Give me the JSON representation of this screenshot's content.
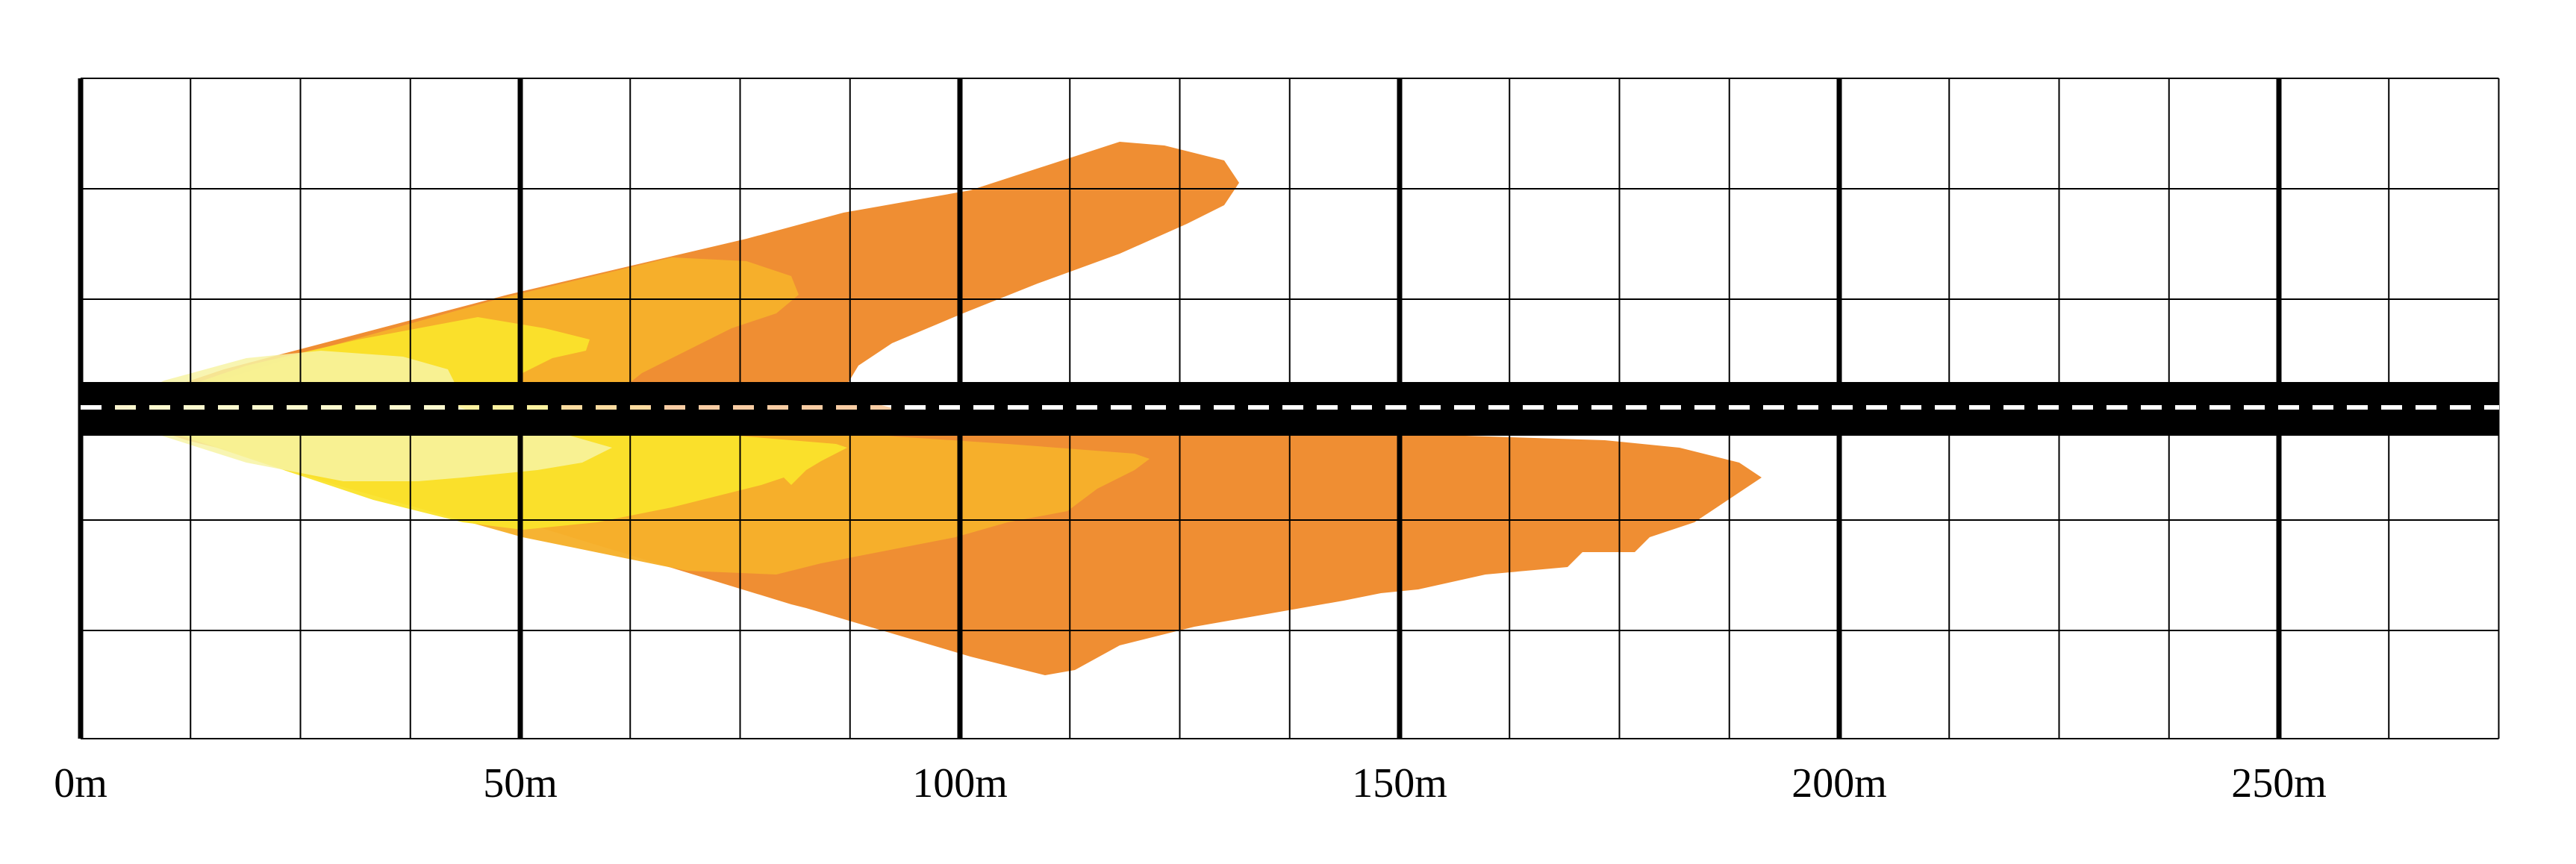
{
  "axis": {
    "unit": "m",
    "ticks": [
      {
        "value": 0,
        "label": "0m"
      },
      {
        "value": 50,
        "label": "50m"
      },
      {
        "value": 100,
        "label": "100m"
      },
      {
        "value": 150,
        "label": "150m"
      },
      {
        "value": 200,
        "label": "200m"
      },
      {
        "value": 250,
        "label": "250m"
      }
    ],
    "range": [
      0,
      275
    ],
    "minor_step": 12.5
  },
  "grid": {
    "shown": true,
    "major_step": 50,
    "minor_step": 12.5
  },
  "road": {
    "color": "#000000",
    "center_line_color": "#ffffff",
    "center_line_style": "dashed"
  },
  "illuminance_zones": [
    {
      "id": "outer",
      "color": "#ee8a2c"
    },
    {
      "id": "mid",
      "color": "#f6b12b"
    },
    {
      "id": "inner",
      "color": "#fae32b"
    },
    {
      "id": "core",
      "color": "#f7f3a4"
    }
  ]
}
